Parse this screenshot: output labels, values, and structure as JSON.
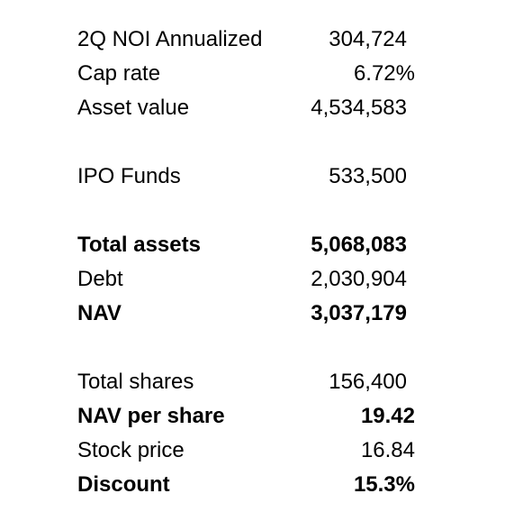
{
  "rows": [
    {
      "label": "2Q NOI Annualized",
      "value": "304,724"
    },
    {
      "label": "Cap rate",
      "value": "6.72%"
    },
    {
      "label": "Asset value",
      "value": "4,534,583"
    },
    {
      "label": "IPO Funds",
      "value": "533,500"
    },
    {
      "label": "Total assets",
      "value": "5,068,083"
    },
    {
      "label": "Debt",
      "value": "2,030,904"
    },
    {
      "label": "NAV",
      "value": "3,037,179"
    },
    {
      "label": "Total shares",
      "value": "156,400"
    },
    {
      "label": "NAV per share",
      "value": "19.42"
    },
    {
      "label": "Stock price",
      "value": "16.84"
    },
    {
      "label": "Discount",
      "value": "15.3%"
    }
  ]
}
